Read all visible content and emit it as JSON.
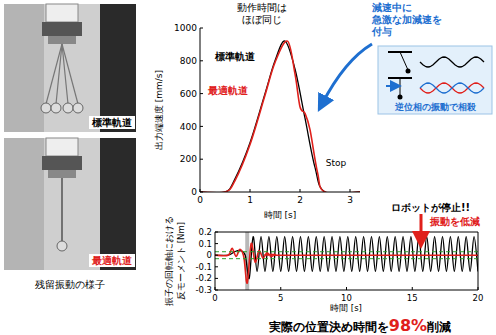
{
  "photos": [
    {
      "label": "標準軌道",
      "color": "#000000"
    },
    {
      "label": "最適軌道",
      "color": "#e0201b"
    }
  ],
  "photo_caption": "残留振動の様子",
  "diagram": {
    "text": "逆位相の振動で相殺"
  },
  "headline": {
    "parts": [
      "実際の位置決め時間を",
      "98%",
      "削減"
    ],
    "color": "#e0201b"
  },
  "chart_data": [
    {
      "type": "line",
      "x_label": "時間 [s]",
      "y_label": "出力端速度 [mm/s]",
      "xlim": [
        0,
        3.2
      ],
      "xticks": [
        0,
        1,
        2,
        3
      ],
      "ylim": [
        0,
        1000
      ],
      "yticks": [
        0,
        200,
        400,
        600,
        800,
        1000
      ],
      "grid": false,
      "series": [
        {
          "name": "標準軌道",
          "color": "#000000",
          "x": [
            0,
            0.5,
            0.7,
            1,
            1.3,
            1.5,
            1.7,
            1.9,
            2.1,
            2.3,
            2.5,
            3.2
          ],
          "values": [
            0,
            0,
            80,
            300,
            600,
            800,
            920,
            750,
            450,
            150,
            0,
            0
          ]
        },
        {
          "name": "最適軌道",
          "color": "#e0201b",
          "x": [
            0,
            0.5,
            0.7,
            1,
            1.3,
            1.5,
            1.75,
            1.9,
            2.0,
            2.1,
            2.2,
            2.35,
            2.5,
            3.2
          ],
          "values": [
            0,
            0,
            70,
            290,
            590,
            790,
            920,
            720,
            520,
            480,
            380,
            120,
            0,
            0
          ]
        }
      ],
      "annotations": [
        {
          "lines": [
            "動作時間は",
            "ほぼ同じ"
          ],
          "color": "#000000"
        },
        {
          "lines": [
            "減速中に",
            "急激な加減速を",
            "付与"
          ],
          "color": "#1e6fd0"
        },
        {
          "lines": [
            "Stop"
          ],
          "color": "#000000"
        }
      ]
    },
    {
      "type": "line",
      "x_label": "時間 [s]",
      "y_label": [
        "振子の回転軸における",
        "反モーメント [Nm]"
      ],
      "xlim": [
        0,
        20
      ],
      "xticks": [
        0,
        5,
        10,
        15,
        20
      ],
      "ylim": [
        -0.3,
        0.2
      ],
      "yticks": [
        -0.3,
        -0.2,
        -0.1,
        0,
        0.1,
        0.2
      ],
      "grid": false,
      "stop_band": [
        2.3,
        2.6
      ],
      "reference_lines": {
        "values": [
          0.03,
          -0.03
        ],
        "color": "#2ca02c"
      },
      "series": [
        {
          "color": "#000000",
          "x": [
            0,
            1,
            1.5,
            1.9,
            2.3,
            2.6,
            2.9,
            3.2,
            3.5,
            3.8,
            4.1,
            4.4,
            4.7,
            5.0,
            5.3,
            5.6,
            5.9,
            6.2,
            6.5,
            6.8,
            7.1,
            7.4,
            7.7,
            8.0,
            8.3,
            8.6,
            8.9,
            9.2,
            9.5,
            9.8,
            10.1,
            10.4,
            10.7,
            11.0,
            11.3,
            11.6,
            11.9,
            12.2,
            12.5,
            12.8,
            13.1,
            13.4,
            13.7,
            14.0,
            14.3,
            14.6,
            14.9,
            15.2,
            15.5,
            15.8,
            16.1,
            16.4,
            16.7,
            17.0,
            17.3,
            17.6,
            17.9,
            18.2,
            18.5,
            18.8,
            19.1,
            19.4,
            19.7,
            20.0
          ],
          "values": [
            0,
            0,
            0.03,
            0.04,
            0,
            -0.2,
            0.16,
            -0.14,
            0.16,
            -0.14,
            0.16,
            -0.14,
            0.16,
            -0.14,
            0.16,
            -0.14,
            0.16,
            -0.14,
            0.16,
            -0.14,
            0.16,
            -0.14,
            0.16,
            -0.14,
            0.16,
            -0.14,
            0.16,
            -0.14,
            0.16,
            -0.14,
            0.16,
            -0.14,
            0.16,
            -0.14,
            0.16,
            -0.14,
            0.16,
            -0.14,
            0.16,
            -0.14,
            0.16,
            -0.14,
            0.16,
            -0.14,
            0.16,
            -0.14,
            0.16,
            -0.14,
            0.16,
            -0.14,
            0.16,
            -0.14,
            0.16,
            -0.14,
            0.16,
            -0.14,
            0.16,
            -0.14,
            0.16,
            -0.14,
            0.16,
            -0.14,
            0.16,
            -0.14
          ]
        },
        {
          "color": "#e0201b",
          "x": [
            0,
            1,
            1.3,
            1.6,
            1.9,
            2.2,
            2.45,
            2.75,
            3.05,
            3.35,
            3.65,
            3.95,
            4.25,
            4.6,
            5.0,
            20
          ],
          "values": [
            0,
            0,
            0.06,
            -0.01,
            0.05,
            -0.02,
            -0.24,
            0.1,
            -0.06,
            0.04,
            -0.025,
            0.02,
            -0.01,
            0.005,
            0,
            0
          ]
        }
      ],
      "annotations": [
        {
          "lines": [
            "ロボットが停止!!"
          ],
          "color": "#000000"
        },
        {
          "lines": [
            "振動を低減"
          ],
          "color": "#e0201b"
        }
      ]
    }
  ]
}
